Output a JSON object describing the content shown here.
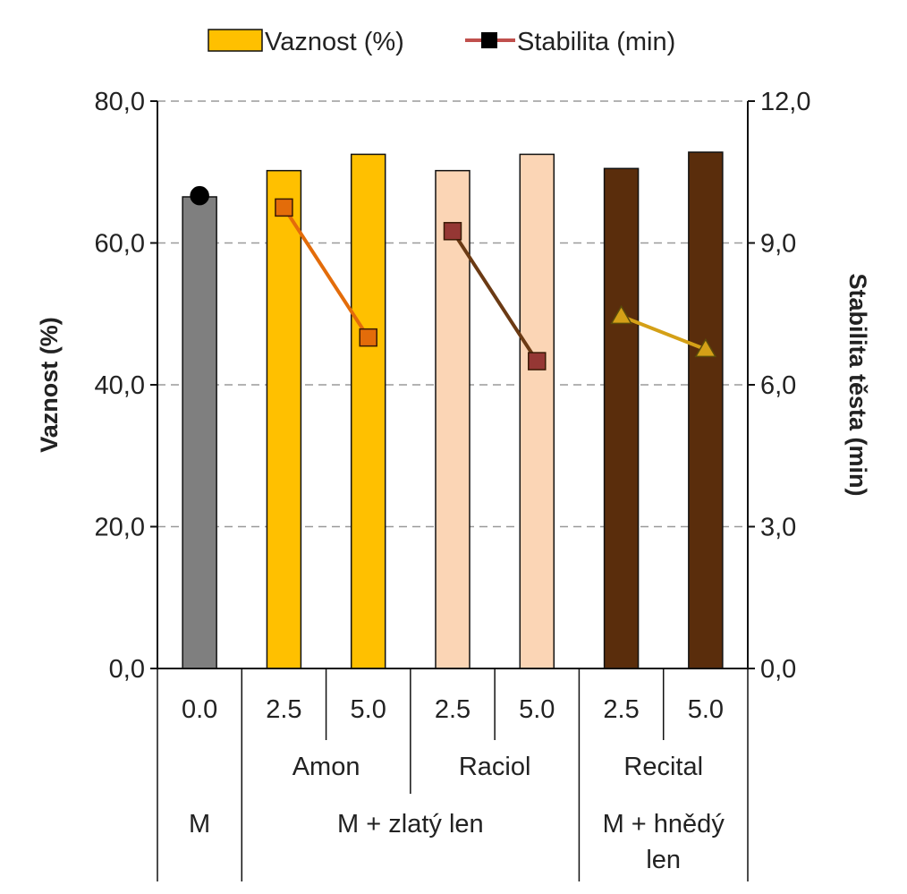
{
  "chart_data": {
    "type": "bar",
    "legend": {
      "position": "top",
      "entries": [
        {
          "label": "Vaznost (%)",
          "kind": "bar"
        },
        {
          "label": "Stabilita (min)",
          "kind": "line"
        }
      ]
    },
    "ylabel": "Vaznost (%)",
    "y2label": "Stabilita těsta (min)",
    "ylim": [
      0,
      80
    ],
    "y2lim": [
      0,
      12
    ],
    "yticks": [
      "0,0",
      "20,0",
      "40,0",
      "60,0",
      "80,0"
    ],
    "y2ticks": [
      "0,0",
      "3,0",
      "6,0",
      "9,0",
      "12,0"
    ],
    "grid": "horizontal-dashed",
    "categories": [
      "0.0",
      "2.5",
      "5.0",
      "2.5",
      "5.0",
      "2.5",
      "5.0"
    ],
    "groups": [
      {
        "label": "",
        "span": [
          0,
          0
        ]
      },
      {
        "label": "Amon",
        "span": [
          1,
          2
        ]
      },
      {
        "label": "Raciol",
        "span": [
          3,
          4
        ]
      },
      {
        "label": "Recital",
        "span": [
          5,
          6
        ]
      }
    ],
    "supergroups": [
      {
        "label": "M",
        "span": [
          0,
          0
        ]
      },
      {
        "label": "M + zlatý len",
        "span": [
          1,
          4
        ]
      },
      {
        "label": "M + hnědý len",
        "span": [
          5,
          6
        ],
        "lines": [
          "M + hnědý",
          "len"
        ]
      }
    ],
    "bar_values": [
      66.5,
      70.2,
      72.5,
      70.2,
      72.5,
      70.5,
      72.8
    ],
    "bar_colors": [
      "#7f7f7f",
      "#ffc000",
      "#ffc000",
      "#fbd5b5",
      "#fbd5b5",
      "#5a2d0c",
      "#5a2d0c"
    ],
    "stability_series": [
      {
        "name": "M",
        "points": [
          [
            0,
            10.0
          ]
        ],
        "marker": "circle",
        "color": "#000000",
        "line_color": "#000000"
      },
      {
        "name": "Amon",
        "points": [
          [
            1,
            9.75
          ],
          [
            2,
            7.0
          ]
        ],
        "marker": "square",
        "color": "#e36c0a",
        "line_color": "#e36c0a"
      },
      {
        "name": "Raciol",
        "points": [
          [
            3,
            9.25
          ],
          [
            4,
            6.5
          ]
        ],
        "marker": "square",
        "color": "#953734",
        "line_color": "#6b3a14"
      },
      {
        "name": "Recital",
        "points": [
          [
            5,
            7.45
          ],
          [
            6,
            6.75
          ]
        ],
        "marker": "triangle",
        "color": "#d4a017",
        "line_color": "#d4a017"
      }
    ],
    "legend_line_color": "#c0504d",
    "legend_marker_color": "#000000"
  }
}
